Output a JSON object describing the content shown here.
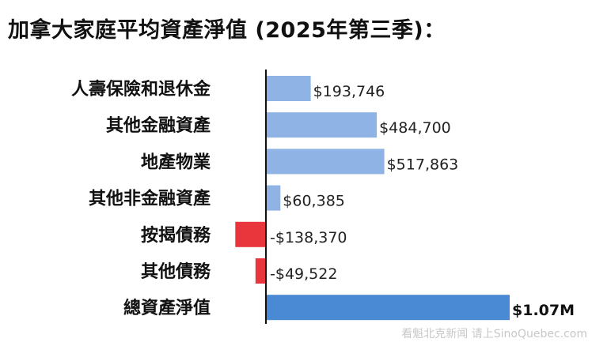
{
  "page": {
    "title": "加拿大家庭平均資產淨值 (2025年第三季)：",
    "watermark": "看魁北克新闻 请上SinoQuebec.com"
  },
  "chart_data": {
    "type": "bar",
    "orientation": "horizontal",
    "title": "加拿大家庭平均資產淨值 (2025年第三季)：",
    "categories": [
      "人壽保險和退休金",
      "其他金融資產",
      "地產物業",
      "其他非金融資產",
      "按揭債務",
      "其他債務",
      "總資產淨值"
    ],
    "values": [
      193746,
      484700,
      517863,
      60385,
      -138370,
      -49522,
      1070000
    ],
    "value_labels": [
      "$193,746",
      "$484,700",
      "$517,863",
      "$60,385",
      "-$138,370",
      "-$49,522",
      "$1.07M"
    ],
    "colors": {
      "positive": "#8fb3e4",
      "negative": "#e8363c",
      "total": "#4a8ad4",
      "baseline": "#111111"
    },
    "grid": false,
    "legend": "none"
  }
}
